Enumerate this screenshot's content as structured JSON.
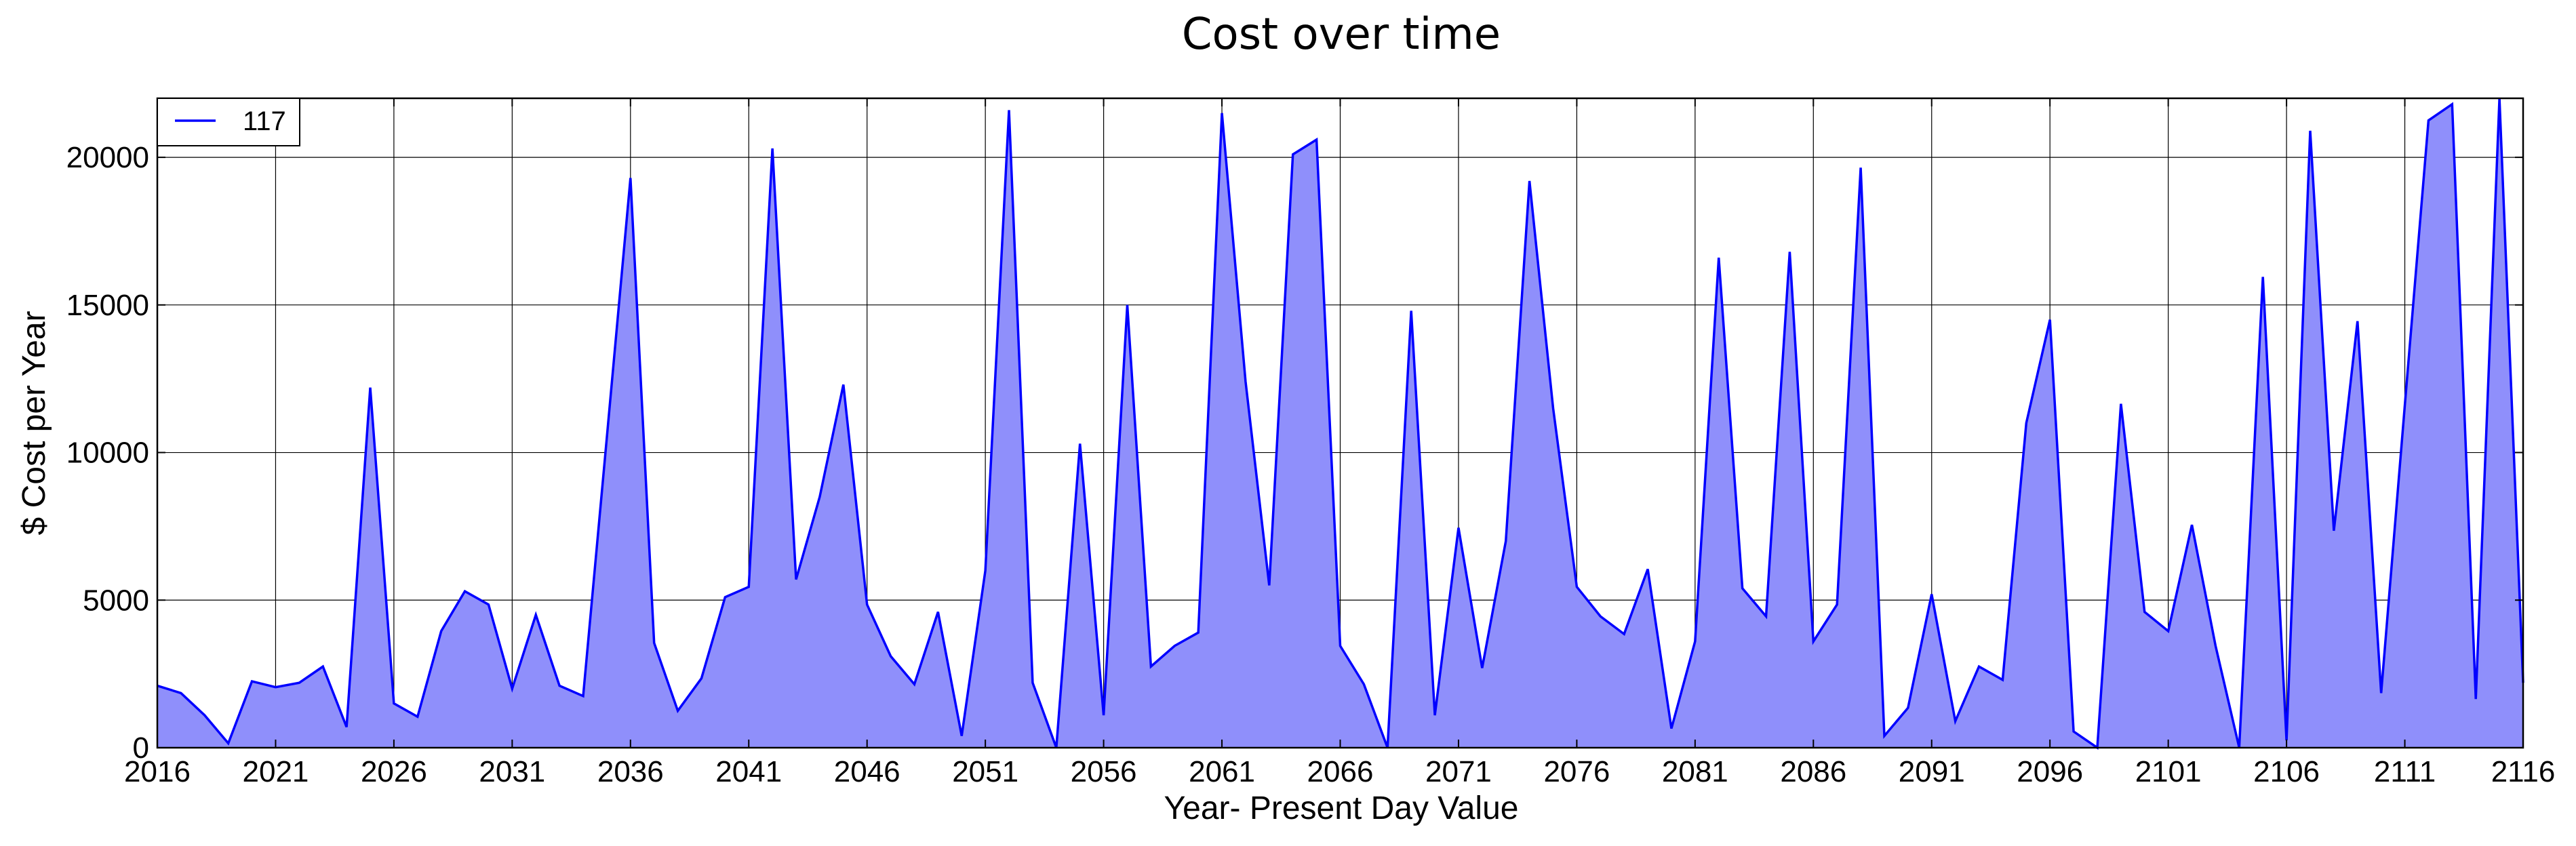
{
  "chart_data": {
    "type": "area",
    "title": "Cost over time",
    "xlabel": "Year- Present Day Value",
    "ylabel": "$ Cost per Year",
    "xlim": [
      2016,
      2116
    ],
    "ylim": [
      0,
      22000
    ],
    "xticks": [
      2016,
      2021,
      2026,
      2031,
      2036,
      2041,
      2046,
      2051,
      2056,
      2061,
      2066,
      2071,
      2076,
      2081,
      2086,
      2091,
      2096,
      2101,
      2106,
      2111,
      2116
    ],
    "yticks": [
      0,
      5000,
      10000,
      15000,
      20000
    ],
    "grid": true,
    "legend_position": "top-left",
    "line_color": "#0000ff",
    "fill_color": "#8f8ffb",
    "series": [
      {
        "name": "117",
        "x": [
          2016,
          2017,
          2018,
          2019,
          2020,
          2021,
          2022,
          2023,
          2024,
          2025,
          2026,
          2027,
          2028,
          2029,
          2030,
          2031,
          2032,
          2033,
          2034,
          2035,
          2036,
          2037,
          2038,
          2039,
          2040,
          2041,
          2042,
          2043,
          2044,
          2045,
          2046,
          2047,
          2048,
          2049,
          2050,
          2051,
          2052,
          2053,
          2054,
          2055,
          2056,
          2057,
          2058,
          2059,
          2060,
          2061,
          2062,
          2063,
          2064,
          2065,
          2066,
          2067,
          2068,
          2069,
          2070,
          2071,
          2072,
          2073,
          2074,
          2075,
          2076,
          2077,
          2078,
          2079,
          2080,
          2081,
          2082,
          2083,
          2084,
          2085,
          2086,
          2087,
          2088,
          2089,
          2090,
          2091,
          2092,
          2093,
          2094,
          2095,
          2096,
          2097,
          2098,
          2099,
          2100,
          2101,
          2102,
          2103,
          2104,
          2105,
          2106,
          2107,
          2108,
          2109,
          2110,
          2111,
          2112,
          2113,
          2114,
          2115,
          2116
        ],
        "values": [
          2100,
          1850,
          1100,
          150,
          2250,
          2050,
          2200,
          2750,
          700,
          12200,
          1500,
          1050,
          3950,
          5300,
          4850,
          2000,
          4500,
          2100,
          1750,
          10500,
          19300,
          3550,
          1250,
          2350,
          5100,
          5450,
          20300,
          5700,
          8500,
          12300,
          4850,
          3100,
          2150,
          4600,
          400,
          6000,
          21600,
          2200,
          0,
          10300,
          1100,
          15000,
          2750,
          3450,
          3900,
          21500,
          12400,
          5500,
          20100,
          20600,
          3450,
          2150,
          0,
          14800,
          1100,
          7450,
          2700,
          7000,
          19200,
          11500,
          5450,
          4450,
          3850,
          6050,
          650,
          3600,
          16600,
          5400,
          4450,
          16800,
          3600,
          4850,
          19650,
          400,
          1350,
          5200,
          900,
          2750,
          2300,
          11000,
          14500,
          550,
          0,
          11650,
          4600,
          3950,
          7550,
          3450,
          0,
          15950,
          250,
          20900,
          7350,
          14450,
          1850,
          11600,
          21250,
          21800,
          1650,
          22500,
          2200
        ]
      }
    ]
  }
}
